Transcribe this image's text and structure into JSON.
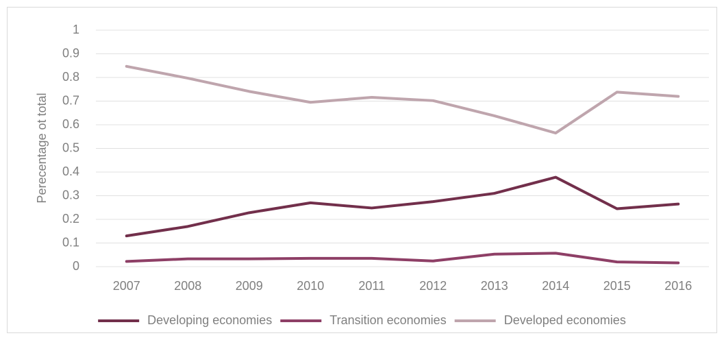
{
  "chart_data": {
    "type": "line",
    "ylabel": "Perecentage ot total",
    "categories": [
      "2007",
      "2008",
      "2009",
      "2010",
      "2011",
      "2012",
      "2013",
      "2014",
      "2015",
      "2016"
    ],
    "series": [
      {
        "name": "Developing economies",
        "color": "#722f4b",
        "values": [
          0.13,
          0.17,
          0.228,
          0.27,
          0.248,
          0.275,
          0.31,
          0.378,
          0.245,
          0.265
        ]
      },
      {
        "name": "Transition economies",
        "color": "#8e3f66",
        "values": [
          0.022,
          0.033,
          0.033,
          0.035,
          0.035,
          0.024,
          0.053,
          0.057,
          0.02,
          0.016
        ]
      },
      {
        "name": "Developed economies",
        "color": "#bfa5ad",
        "values": [
          0.847,
          0.797,
          0.741,
          0.695,
          0.716,
          0.702,
          0.638,
          0.565,
          0.738,
          0.72
        ]
      }
    ],
    "ylim": [
      0,
      1
    ],
    "yticks": [
      0,
      0.1,
      0.2,
      0.3,
      0.4,
      0.5,
      0.6,
      0.7,
      0.8,
      0.9,
      1
    ],
    "grid": true,
    "legend": "bottom"
  }
}
